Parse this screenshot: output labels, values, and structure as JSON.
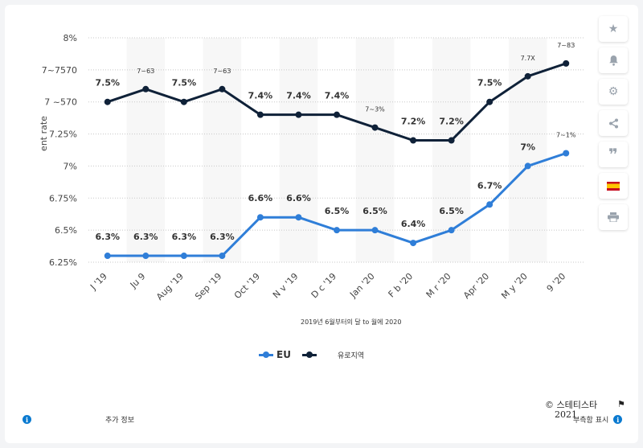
{
  "chart_data": {
    "type": "line",
    "categories": [
      "Jun '19",
      "Jul '19",
      "Aug '19",
      "Sep '19",
      "Oct '19",
      "Nov '19",
      "Dec '19",
      "Jan '20",
      "Feb '20",
      "Mar '20",
      "Apr '20",
      "May '20",
      "Jun '20"
    ],
    "tick_labels": [
      "J '19",
      "Ju 9",
      "Aug '19",
      "Sep '19",
      "Oct '19",
      "N v '19",
      "D c '19",
      "Jan '20",
      "F b '20",
      "M r '20",
      "Apr '20",
      "M y '20",
      "9 '20"
    ],
    "series": [
      {
        "name": "EU",
        "color": "#2f7ed8",
        "values": [
          6.3,
          6.3,
          6.3,
          6.3,
          6.6,
          6.6,
          6.5,
          6.5,
          6.4,
          6.5,
          6.7,
          7.0,
          7.1
        ],
        "labels": [
          "6.3%",
          "6.3%",
          "6.3%",
          "6.3%",
          "6.6%",
          "6.6%",
          "6.5%",
          "6.5%",
          "6.4%",
          "6.5%",
          "6.7%",
          "7%",
          "7~1%"
        ]
      },
      {
        "name": "유로지역",
        "color": "#0f2138",
        "values": [
          7.5,
          7.6,
          7.5,
          7.6,
          7.4,
          7.4,
          7.4,
          7.3,
          7.2,
          7.2,
          7.5,
          7.7,
          7.8
        ],
        "labels": [
          "7.5%",
          "7~6З",
          "7.5%",
          "7~6З",
          "7.4%",
          "7.4%",
          "7.4%",
          "7~3%",
          "7.2%",
          "7.2%",
          "7.5%",
          "7.7X",
          "7~8З"
        ]
      }
    ],
    "y_ticks": [
      "6.25%",
      "6.5%",
      "6.75%",
      "7%",
      "7.25%",
      "7 ~570",
      "7~7570",
      "8%"
    ],
    "ylim": [
      6.25,
      8.0
    ],
    "ylabel": "ent rate",
    "xlabel": "2019년 6월부터의 달 to 월에 2020",
    "grid": true
  },
  "legend": {
    "eu_label": "EU",
    "ez_label": "유로지역"
  },
  "toolbar": {
    "star_icon": "star-icon",
    "bell_icon": "bell-icon",
    "gear_icon": "gear-icon",
    "share_icon": "share-icon",
    "quote_icon": "quote-icon",
    "flag_icon": "spain-flag-icon",
    "print_icon": "print-icon"
  },
  "footer": {
    "more_info": "추가 정보",
    "copyright": "© 스테티스타",
    "year": "2021",
    "report": "부측함 표시"
  }
}
